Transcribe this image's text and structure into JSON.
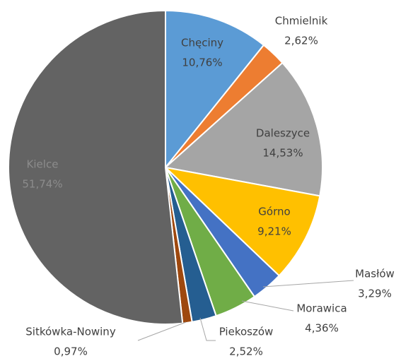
{
  "chart_data": {
    "type": "pie",
    "categories": [
      "Chęciny",
      "Chmielnik",
      "Daleszyce",
      "Górno",
      "Masłów",
      "Morawica",
      "Piekoszów",
      "Sitkówka-Nowiny",
      "Kielce"
    ],
    "values": [
      10.76,
      2.62,
      14.53,
      9.21,
      3.29,
      4.36,
      2.52,
      0.97,
      51.74
    ],
    "value_labels": [
      "10,76%",
      "2,62%",
      "14,53%",
      "9,21%",
      "3,29%",
      "4,36%",
      "2,52%",
      "0,97%",
      "51,74%"
    ],
    "colors": [
      "#5b9bd5",
      "#ed7d31",
      "#a5a5a5",
      "#ffc000",
      "#4472c4",
      "#70ad47",
      "#255e91",
      "#9e480e",
      "#636363"
    ]
  }
}
